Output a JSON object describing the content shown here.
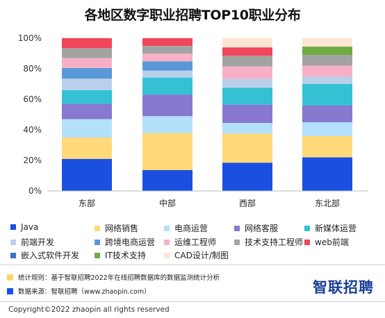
{
  "chart_data": {
    "type": "bar",
    "stacked": true,
    "normalized": true,
    "title": "各地区数字职业招聘TOP10职业分布",
    "categories": [
      "东部",
      "中部",
      "西部",
      "东北部"
    ],
    "ylim": [
      0,
      100
    ],
    "yticks": [
      "0%",
      "20%",
      "40%",
      "60%",
      "80%",
      "100%"
    ],
    "grid": false,
    "legend_position": "bottom",
    "series": [
      {
        "name": "Java",
        "color": "#1a4fe0",
        "values": [
          21,
          13.5,
          18.5,
          22
        ]
      },
      {
        "name": "网络销售",
        "color": "#ffd97a",
        "values": [
          14,
          24,
          19,
          14
        ]
      },
      {
        "name": "电商运营",
        "color": "#b3e0fb",
        "values": [
          12,
          11,
          7,
          9
        ]
      },
      {
        "name": "网络客服",
        "color": "#8878d0",
        "values": [
          10,
          14,
          12,
          11
        ]
      },
      {
        "name": "新媒体运营",
        "color": "#33c1d3",
        "values": [
          9,
          11,
          11,
          14
        ]
      },
      {
        "name": "前端开发",
        "color": "#b9d0ea",
        "values": [
          7.5,
          4.5,
          6,
          5
        ]
      },
      {
        "name": "跨境电商运营",
        "color": "#5a99d8",
        "values": [
          7,
          6,
          0,
          0
        ]
      },
      {
        "name": "运维工程师",
        "color": "#f7b0c5",
        "values": [
          6.5,
          5,
          8,
          7
        ]
      },
      {
        "name": "技术支持工程师",
        "color": "#a3a3a3",
        "values": [
          6.5,
          5,
          7,
          7
        ]
      },
      {
        "name": "web前端",
        "color": "#f0455b",
        "values": [
          6.5,
          5,
          5.5,
          0
        ]
      },
      {
        "name": "嵌入式软件开发",
        "color": "#3a6fc4",
        "values": [
          0,
          0,
          0,
          0
        ]
      },
      {
        "name": "IT技术支持",
        "color": "#6faa45",
        "values": [
          0,
          0,
          0,
          5.5
        ]
      },
      {
        "name": "CAD设计/制图",
        "color": "#fde6d4",
        "values": [
          0,
          0,
          6,
          5.5
        ]
      }
    ]
  },
  "legend_items": [
    {
      "label": "Java",
      "color": "#1a4fe0"
    },
    {
      "label": "网络销售",
      "color": "#ffd97a"
    },
    {
      "label": "电商运营",
      "color": "#b3e0fb"
    },
    {
      "label": "网络客服",
      "color": "#8878d0"
    },
    {
      "label": "新媒体运营",
      "color": "#33c1d3"
    },
    {
      "label": "前端开发",
      "color": "#b9d0ea"
    },
    {
      "label": "跨境电商运营",
      "color": "#5a99d8"
    },
    {
      "label": "运维工程师",
      "color": "#f7b0c5"
    },
    {
      "label": "技术支持工程师",
      "color": "#a3a3a3"
    },
    {
      "label": "web前端",
      "color": "#f0455b"
    },
    {
      "label": "嵌入式软件开发",
      "color": "#3a6fc4"
    },
    {
      "label": "IT技术支持",
      "color": "#6faa45"
    },
    {
      "label": "CAD设计/制图",
      "color": "#fde6d4"
    }
  ],
  "notes": {
    "rule": {
      "text": "统计规则：基于智联招聘2022年在线招聘数据库的数据监测统计分析",
      "color": "#ffd466"
    },
    "source": {
      "text": "数据来源：智联招聘（www.zhaopin.com）",
      "color": "#1f4fe8"
    }
  },
  "brand": "智联招聘",
  "copyright": "Copyright©2022 zhaopin all rights reserved"
}
